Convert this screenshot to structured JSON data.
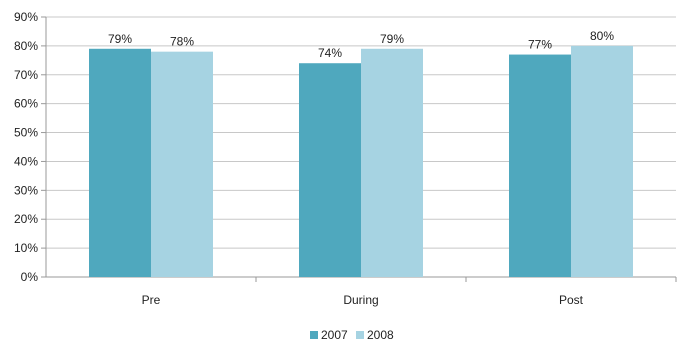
{
  "chart_data": {
    "type": "bar",
    "categories": [
      "Pre",
      "During",
      "Post"
    ],
    "series": [
      {
        "name": "2007",
        "values": [
          79,
          74,
          77
        ],
        "labels": [
          "79%",
          "74%",
          "77%"
        ],
        "color": "#4fa8be"
      },
      {
        "name": "2008",
        "values": [
          78,
          79,
          80
        ],
        "labels": [
          "78%",
          "79%",
          "80%"
        ],
        "color": "#a6d3e2"
      }
    ],
    "yticks": [
      "0%",
      "10%",
      "20%",
      "30%",
      "40%",
      "50%",
      "60%",
      "70%",
      "80%",
      "90%"
    ],
    "ylim": [
      0,
      90
    ],
    "ytick_step": 10,
    "grid": true,
    "legend_position": "bottom",
    "title": "",
    "xlabel": "",
    "ylabel": ""
  }
}
